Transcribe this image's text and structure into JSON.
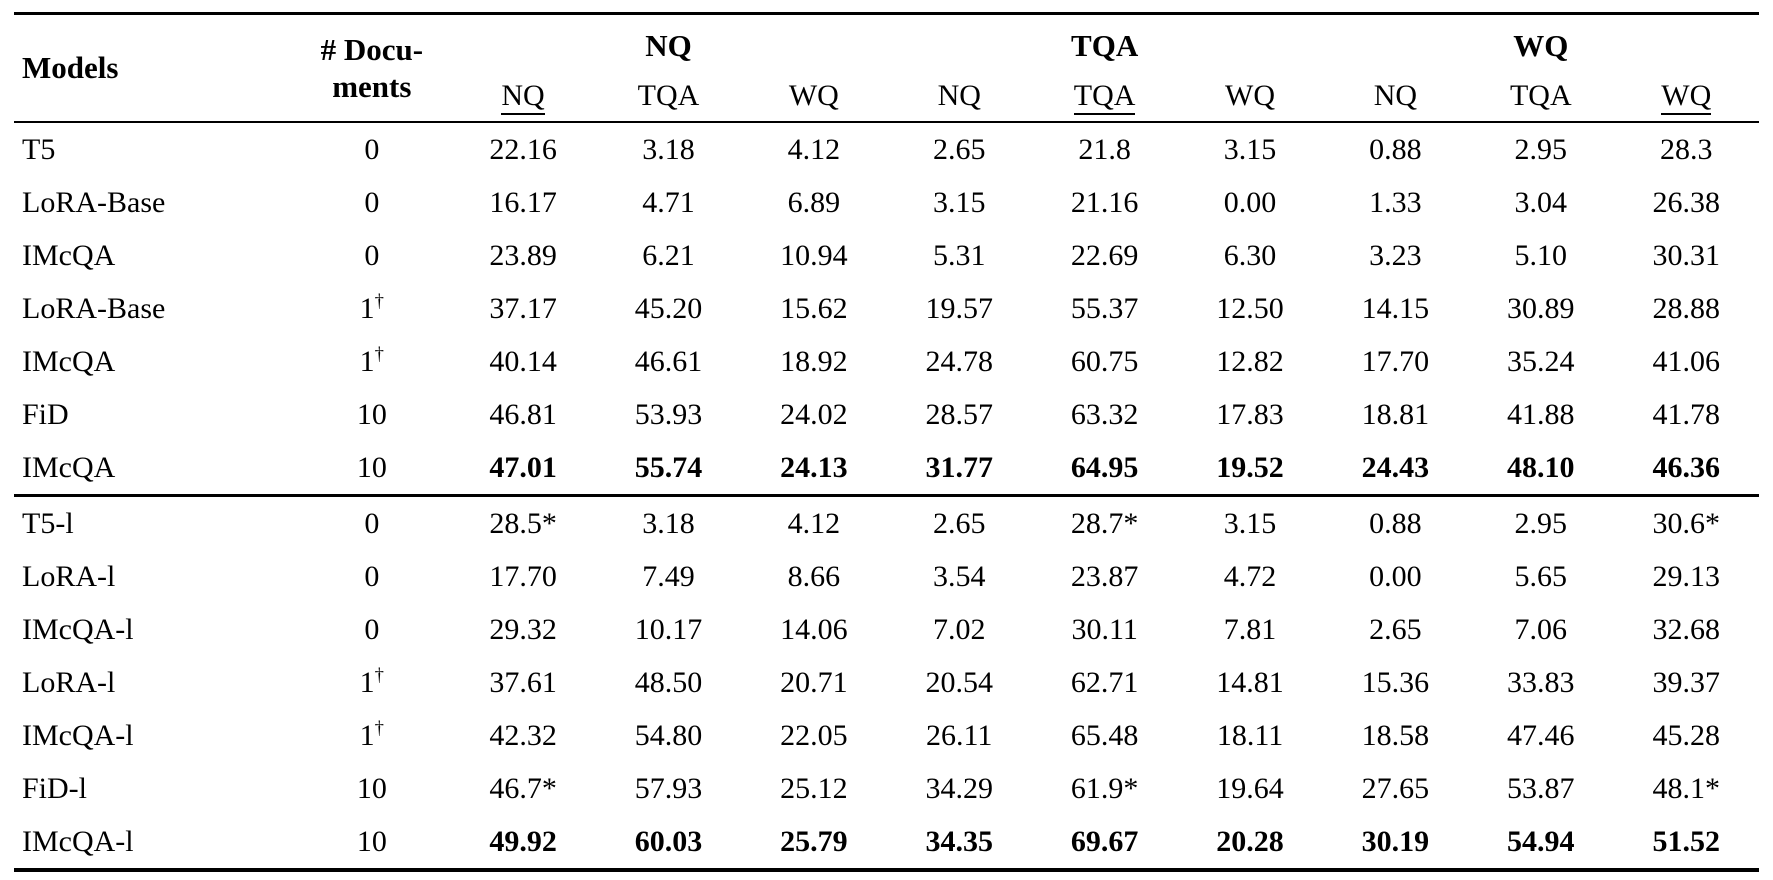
{
  "meta": {
    "background_color": "#ffffff",
    "text_color": "#000000",
    "rule_color": "#000000"
  },
  "table": {
    "dagger_symbol": "†",
    "header": {
      "models_label": "Models",
      "documents_label_line1": "# Docu-",
      "documents_label_line2": "ments",
      "groups": [
        {
          "label": "NQ",
          "subcolumns": [
            "NQ",
            "TQA",
            "WQ"
          ],
          "underlined_subcolumn_index": 0
        },
        {
          "label": "TQA",
          "subcolumns": [
            "NQ",
            "TQA",
            "WQ"
          ],
          "underlined_subcolumn_index": 1
        },
        {
          "label": "WQ",
          "subcolumns": [
            "NQ",
            "TQA",
            "WQ"
          ],
          "underlined_subcolumn_index": 2
        }
      ]
    },
    "sections": [
      {
        "rows": [
          {
            "model": "T5",
            "documents": "0",
            "dagger": false,
            "bold_values": false,
            "values": [
              "22.16",
              "3.18",
              "4.12",
              "2.65",
              "21.8",
              "3.15",
              "0.88",
              "2.95",
              "28.3"
            ]
          },
          {
            "model": "LoRA-Base",
            "documents": "0",
            "dagger": false,
            "bold_values": false,
            "values": [
              "16.17",
              "4.71",
              "6.89",
              "3.15",
              "21.16",
              "0.00",
              "1.33",
              "3.04",
              "26.38"
            ]
          },
          {
            "model": "IMcQA",
            "documents": "0",
            "dagger": false,
            "bold_values": false,
            "values": [
              "23.89",
              "6.21",
              "10.94",
              "5.31",
              "22.69",
              "6.30",
              "3.23",
              "5.10",
              "30.31"
            ]
          },
          {
            "model": "LoRA-Base",
            "documents": "1",
            "dagger": true,
            "bold_values": false,
            "values": [
              "37.17",
              "45.20",
              "15.62",
              "19.57",
              "55.37",
              "12.50",
              "14.15",
              "30.89",
              "28.88"
            ]
          },
          {
            "model": "IMcQA",
            "documents": "1",
            "dagger": true,
            "bold_values": false,
            "values": [
              "40.14",
              "46.61",
              "18.92",
              "24.78",
              "60.75",
              "12.82",
              "17.70",
              "35.24",
              "41.06"
            ]
          },
          {
            "model": "FiD",
            "documents": "10",
            "dagger": false,
            "bold_values": false,
            "values": [
              "46.81",
              "53.93",
              "24.02",
              "28.57",
              "63.32",
              "17.83",
              "18.81",
              "41.88",
              "41.78"
            ]
          },
          {
            "model": "IMcQA",
            "documents": "10",
            "dagger": false,
            "bold_values": true,
            "values": [
              "47.01",
              "55.74",
              "24.13",
              "31.77",
              "64.95",
              "19.52",
              "24.43",
              "48.10",
              "46.36"
            ]
          }
        ]
      },
      {
        "rows": [
          {
            "model": "T5-l",
            "documents": "0",
            "dagger": false,
            "bold_values": false,
            "values": [
              "28.5*",
              "3.18",
              "4.12",
              "2.65",
              "28.7*",
              "3.15",
              "0.88",
              "2.95",
              "30.6*"
            ]
          },
          {
            "model": "LoRA-l",
            "documents": "0",
            "dagger": false,
            "bold_values": false,
            "values": [
              "17.70",
              "7.49",
              "8.66",
              "3.54",
              "23.87",
              "4.72",
              "0.00",
              "5.65",
              "29.13"
            ]
          },
          {
            "model": "IMcQA-l",
            "documents": "0",
            "dagger": false,
            "bold_values": false,
            "values": [
              "29.32",
              "10.17",
              "14.06",
              "7.02",
              "30.11",
              "7.81",
              "2.65",
              "7.06",
              "32.68"
            ]
          },
          {
            "model": "LoRA-l",
            "documents": "1",
            "dagger": true,
            "bold_values": false,
            "values": [
              "37.61",
              "48.50",
              "20.71",
              "20.54",
              "62.71",
              "14.81",
              "15.36",
              "33.83",
              "39.37"
            ]
          },
          {
            "model": "IMcQA-l",
            "documents": "1",
            "dagger": true,
            "bold_values": false,
            "values": [
              "42.32",
              "54.80",
              "22.05",
              "26.11",
              "65.48",
              "18.11",
              "18.58",
              "47.46",
              "45.28"
            ]
          },
          {
            "model": "FiD-l",
            "documents": "10",
            "dagger": false,
            "bold_values": false,
            "values": [
              "46.7*",
              "57.93",
              "25.12",
              "34.29",
              "61.9*",
              "19.64",
              "27.65",
              "53.87",
              "48.1*"
            ]
          },
          {
            "model": "IMcQA-l",
            "documents": "10",
            "dagger": false,
            "bold_values": true,
            "values": [
              "49.92",
              "60.03",
              "25.79",
              "34.35",
              "69.67",
              "20.28",
              "30.19",
              "54.94",
              "51.52"
            ]
          }
        ]
      }
    ]
  }
}
